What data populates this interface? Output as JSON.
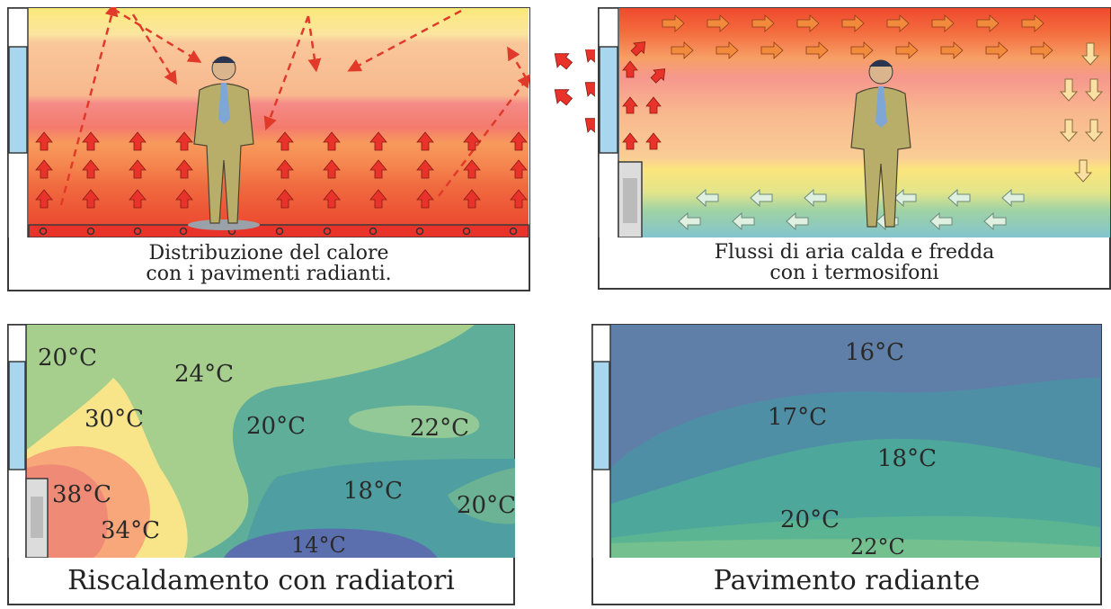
{
  "panels": {
    "floor_heating_flow": {
      "caption_line1": "Distribuzione del calore",
      "caption_line2": "con i pavimenti radianti."
    },
    "radiator_flow": {
      "caption_line1": "Flussi di aria calda e fredda",
      "caption_line2": "con i termosifoni"
    },
    "radiator_temps": {
      "caption": "Riscaldamento con radiatori",
      "labels": [
        "20°C",
        "24°C",
        "30°C",
        "20°C",
        "22°C",
        "38°C",
        "18°C",
        "34°C",
        "20°C",
        "14°C"
      ]
    },
    "floor_temps": {
      "caption": "Pavimento radiante",
      "labels": [
        "16°C",
        "17°C",
        "18°C",
        "20°C",
        "22°C"
      ]
    }
  },
  "colors": {
    "hot": "#ee3b2b",
    "warm": "#f7a25e",
    "mild": "#fbe27a",
    "cool": "#7dbf9c",
    "cold": "#5f7fa8",
    "window": "#a9d6ef"
  }
}
